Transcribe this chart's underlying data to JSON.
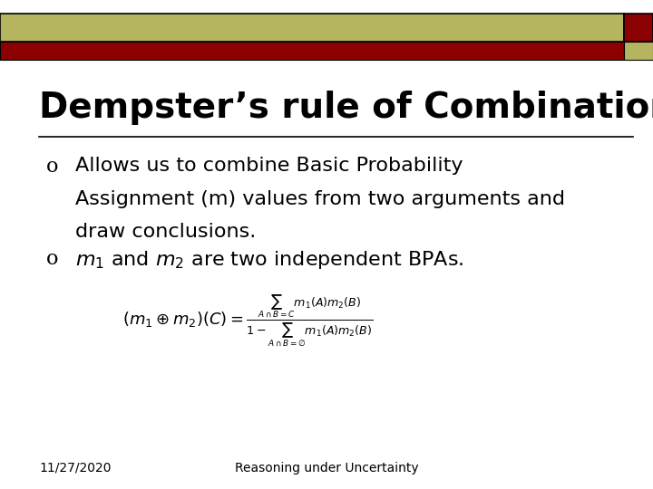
{
  "title": "Dempster’s rule of Combination",
  "top_bar_color": "#b5b560",
  "red_bar_color": "#8b0000",
  "bg_color": "#ffffff",
  "bullet1_line1": "Allows us to combine Basic Probability",
  "bullet1_line2": "Assignment (m) values from two arguments and",
  "bullet1_line3": "draw conclusions.",
  "footer_left": "11/27/2020",
  "footer_center": "Reasoning under Uncertainty",
  "title_fontsize": 28,
  "bullet_fontsize": 16,
  "footer_fontsize": 10,
  "formula_fontsize": 13
}
